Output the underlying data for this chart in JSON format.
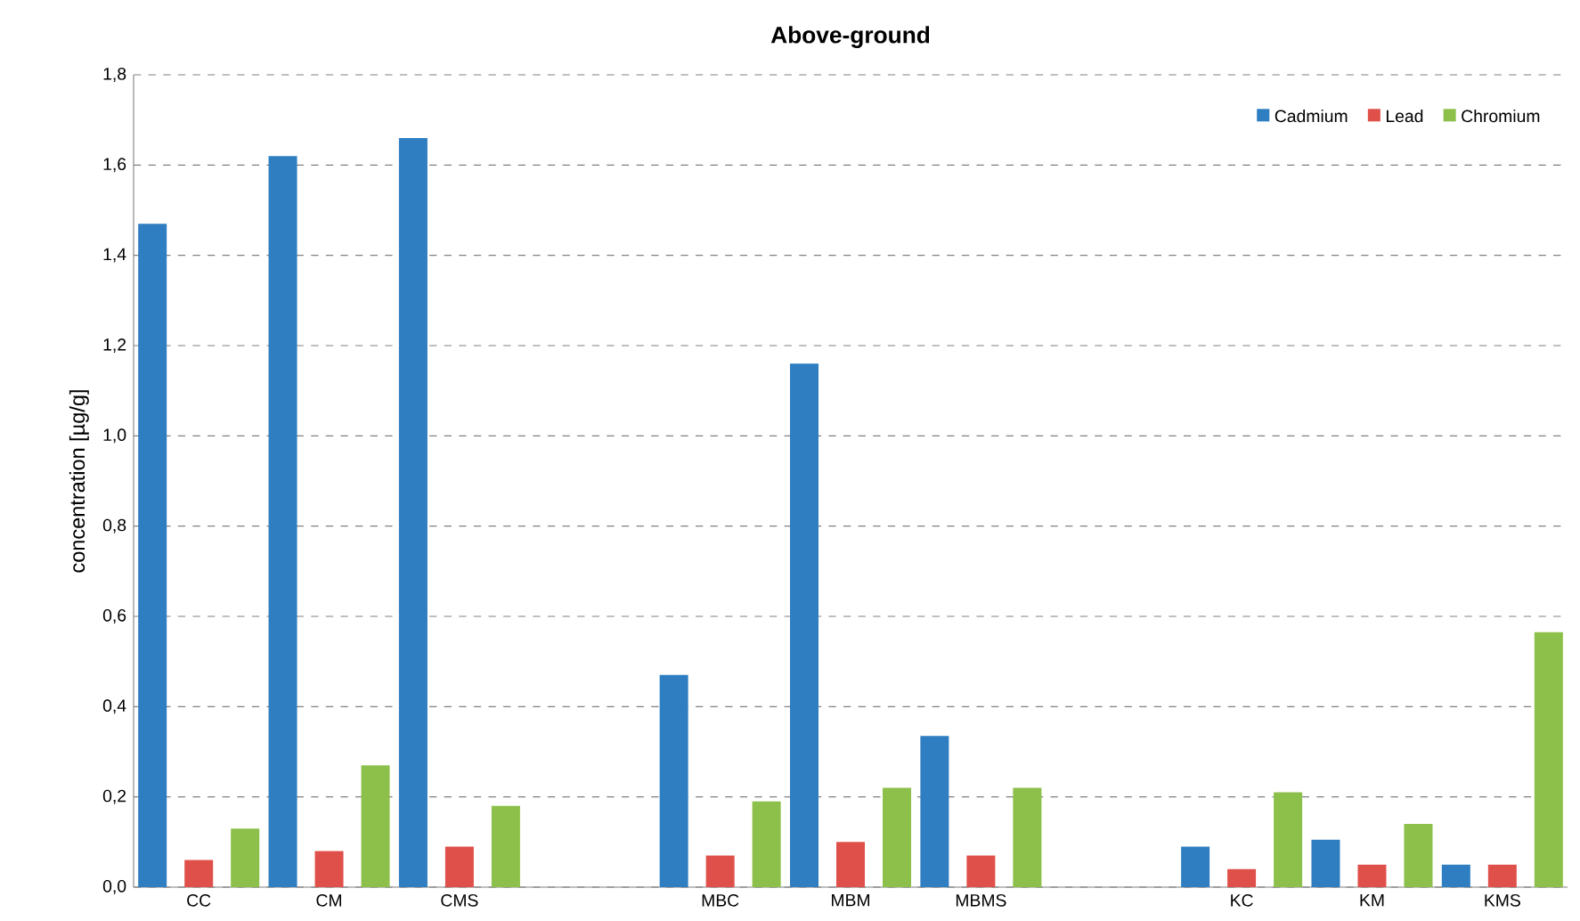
{
  "chart_data": {
    "type": "bar",
    "title": "Above-ground",
    "ylabel": "concentration [µg/g]",
    "categories": [
      "CC",
      "CM",
      "CMS",
      null,
      "MBC",
      "MBM",
      "MBMS",
      null,
      "KC",
      "KM",
      "KMS"
    ],
    "series": [
      {
        "name": "Cadmium",
        "color": "#2e7ec1",
        "values": [
          1.47,
          1.62,
          1.66,
          null,
          0.47,
          1.16,
          0.335,
          null,
          0.09,
          0.105,
          0.05
        ]
      },
      {
        "name": "Lead",
        "color": "#e0504a",
        "values": [
          0.06,
          0.08,
          0.09,
          null,
          0.07,
          0.1,
          0.07,
          null,
          0.04,
          0.05,
          0.05
        ]
      },
      {
        "name": "Chromium",
        "color": "#8cc04a",
        "values": [
          0.13,
          0.27,
          0.18,
          null,
          0.19,
          0.22,
          0.22,
          null,
          0.21,
          0.14,
          0.565
        ]
      }
    ],
    "ylim": [
      0,
      1.8
    ],
    "yticks": [
      {
        "value": 0,
        "label": "0,0"
      },
      {
        "value": 0.2,
        "label": "0,2"
      },
      {
        "value": 0.4,
        "label": "0,4"
      },
      {
        "value": 0.6,
        "label": "0,6"
      },
      {
        "value": 0.8,
        "label": "0,8"
      },
      {
        "value": 1.0,
        "label": "1,0"
      },
      {
        "value": 1.2,
        "label": "1,2"
      },
      {
        "value": 1.4,
        "label": "1,4"
      },
      {
        "value": 1.6,
        "label": "1,6"
      },
      {
        "value": 1.8,
        "label": "1,8"
      }
    ],
    "grid": "y",
    "legend": "top right"
  }
}
